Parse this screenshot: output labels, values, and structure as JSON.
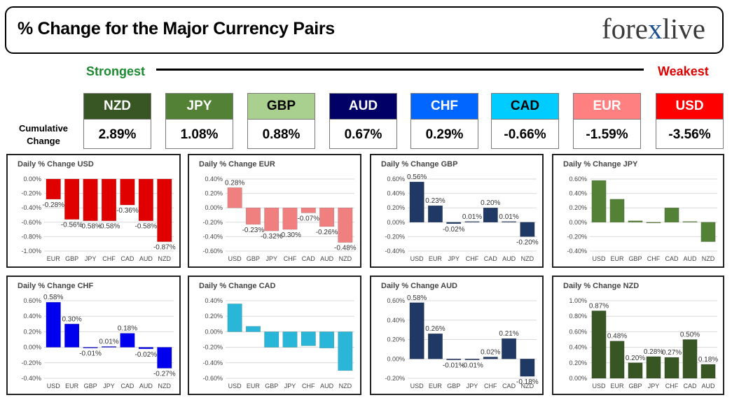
{
  "header": {
    "title": "% Change for the Major Currency Pairs",
    "logo": {
      "part1": "fore",
      "part2": "x",
      "part3": "live"
    }
  },
  "scale": {
    "strongest": "Strongest",
    "weakest": "Weakest"
  },
  "cumulative": {
    "label_line1": "Cumulative",
    "label_line2": "Change",
    "items": [
      {
        "currency": "NZD",
        "value": "2.89%",
        "color": "#375623",
        "text": "#ffffff"
      },
      {
        "currency": "JPY",
        "value": "1.08%",
        "color": "#538135",
        "text": "#ffffff"
      },
      {
        "currency": "GBP",
        "value": "0.88%",
        "color": "#a9d08e",
        "text": "#000000"
      },
      {
        "currency": "AUD",
        "value": "0.67%",
        "color": "#000066",
        "text": "#ffffff"
      },
      {
        "currency": "CHF",
        "value": "0.29%",
        "color": "#0066ff",
        "text": "#ffffff"
      },
      {
        "currency": "CAD",
        "value": "-0.66%",
        "color": "#00ccff",
        "text": "#000000"
      },
      {
        "currency": "EUR",
        "value": "-1.59%",
        "color": "#ff8080",
        "text": "#ffffff"
      },
      {
        "currency": "USD",
        "value": "-3.56%",
        "color": "#ff0000",
        "text": "#ffffff"
      }
    ]
  },
  "chart_data": [
    {
      "type": "bar",
      "title": "Daily % Change USD",
      "color": "#e00000",
      "categories": [
        "EUR",
        "GBP",
        "JPY",
        "CHF",
        "CAD",
        "AUD",
        "NZD"
      ],
      "values": [
        -0.28,
        -0.56,
        -0.58,
        -0.58,
        -0.36,
        -0.58,
        -0.87
      ],
      "labels": [
        "-0.28%",
        "-0.56%",
        "-0.58%",
        "-0.58%",
        "-0.36%",
        "-0.58%",
        "-0.87%"
      ],
      "yticks": [
        0,
        -0.2,
        -0.4,
        -0.6,
        -0.8,
        -1.0
      ],
      "yticklabels": [
        "0.00%",
        "-0.20%",
        "-0.40%",
        "-0.60%",
        "-0.80%",
        "-1.00%"
      ],
      "ylim": [
        -1.0,
        0.0
      ]
    },
    {
      "type": "bar",
      "title": "Daily % Change EUR",
      "color": "#f08080",
      "categories": [
        "USD",
        "GBP",
        "JPY",
        "CHF",
        "CAD",
        "AUD",
        "NZD"
      ],
      "values": [
        0.28,
        -0.23,
        -0.32,
        -0.3,
        -0.07,
        -0.26,
        -0.48
      ],
      "labels": [
        "0.28%",
        "-0.23%",
        "-0.32%",
        "-0.30%",
        "-0.07%",
        "-0.26%",
        "-0.48%"
      ],
      "yticks": [
        0.4,
        0.2,
        0,
        -0.2,
        -0.4,
        -0.6
      ],
      "yticklabels": [
        "0.40%",
        "0.20%",
        "0.00%",
        "-0.20%",
        "-0.40%",
        "-0.60%"
      ],
      "ylim": [
        -0.6,
        0.4
      ]
    },
    {
      "type": "bar",
      "title": "Daily % Change GBP",
      "color": "#1f3864",
      "categories": [
        "USD",
        "EUR",
        "JPY",
        "CHF",
        "CAD",
        "AUD",
        "NZD"
      ],
      "values": [
        0.56,
        0.23,
        -0.02,
        0.01,
        0.2,
        0.01,
        -0.2
      ],
      "labels": [
        "0.56%",
        "0.23%",
        "-0.02%",
        "0.01%",
        "0.20%",
        "0.01%",
        "-0.20%"
      ],
      "yticks": [
        0.6,
        0.4,
        0.2,
        0,
        -0.2,
        -0.4
      ],
      "yticklabels": [
        "0.60%",
        "0.40%",
        "0.20%",
        "0.00%",
        "-0.20%",
        "-0.40%"
      ],
      "ylim": [
        -0.4,
        0.6
      ]
    },
    {
      "type": "bar",
      "title": "Daily % Change JPY",
      "color": "#538135",
      "categories": [
        "USD",
        "EUR",
        "GBP",
        "CHF",
        "CAD",
        "AUD",
        "NZD"
      ],
      "values": [
        0.58,
        0.32,
        0.02,
        -0.01,
        0.2,
        0.01,
        -0.27
      ],
      "labels": [
        "",
        "",
        "",
        "",
        "",
        "",
        ""
      ],
      "yticks": [
        0.6,
        0.4,
        0.2,
        0,
        -0.2,
        -0.4
      ],
      "yticklabels": [
        "0.60%",
        "0.40%",
        "0.20%",
        "0.00%",
        "-0.20%",
        "-0.40%"
      ],
      "ylim": [
        -0.4,
        0.6
      ]
    },
    {
      "type": "bar",
      "title": "Daily % Change CHF",
      "color": "#0000ee",
      "categories": [
        "USD",
        "EUR",
        "GBP",
        "JPY",
        "CAD",
        "AUD",
        "NZD"
      ],
      "values": [
        0.58,
        0.3,
        -0.01,
        0.01,
        0.18,
        -0.02,
        -0.27
      ],
      "labels": [
        "0.58%",
        "0.30%",
        "-0.01%",
        "0.01%",
        "0.18%",
        "-0.02%",
        "-0.27%"
      ],
      "yticks": [
        0.6,
        0.4,
        0.2,
        0,
        -0.2,
        -0.4
      ],
      "yticklabels": [
        "0.60%",
        "0.40%",
        "0.20%",
        "0.00%",
        "-0.20%",
        "-0.40%"
      ],
      "ylim": [
        -0.4,
        0.6
      ]
    },
    {
      "type": "bar",
      "title": "Daily % Change CAD",
      "color": "#29b6d8",
      "categories": [
        "USD",
        "EUR",
        "GBP",
        "JPY",
        "CHF",
        "AUD",
        "NZD"
      ],
      "values": [
        0.36,
        0.07,
        -0.2,
        -0.2,
        -0.18,
        -0.21,
        -0.5
      ],
      "labels": [
        "",
        "",
        "",
        "",
        "",
        "",
        ""
      ],
      "yticks": [
        0.4,
        0.2,
        0,
        -0.2,
        -0.4,
        -0.6
      ],
      "yticklabels": [
        "0.40%",
        "0.20%",
        "0.00%",
        "-0.20%",
        "-0.40%",
        "-0.60%"
      ],
      "ylim": [
        -0.6,
        0.4
      ]
    },
    {
      "type": "bar",
      "title": "Daily % Change AUD",
      "color": "#1f3864",
      "categories": [
        "USD",
        "EUR",
        "GBP",
        "JPY",
        "CHF",
        "CAD",
        "NZD"
      ],
      "values": [
        0.58,
        0.26,
        -0.01,
        -0.01,
        0.02,
        0.21,
        -0.18
      ],
      "labels": [
        "0.58%",
        "0.26%",
        "-0.01%",
        "-0.01%",
        "0.02%",
        "0.21%",
        "-0.18%"
      ],
      "yticks": [
        0.6,
        0.4,
        0.2,
        0,
        -0.2
      ],
      "yticklabels": [
        "0.60%",
        "0.40%",
        "0.20%",
        "0.00%",
        "-0.20%"
      ],
      "ylim": [
        -0.2,
        0.6
      ]
    },
    {
      "type": "bar",
      "title": "Daily % Change NZD",
      "color": "#375623",
      "categories": [
        "USD",
        "EUR",
        "GBP",
        "JPY",
        "CHF",
        "CAD",
        "AUD"
      ],
      "values": [
        0.87,
        0.48,
        0.2,
        0.28,
        0.27,
        0.5,
        0.18
      ],
      "labels": [
        "0.87%",
        "0.48%",
        "0.20%",
        "0.28%",
        "0.27%",
        "0.50%",
        "0.18%"
      ],
      "yticks": [
        1.0,
        0.8,
        0.6,
        0.4,
        0.2,
        0
      ],
      "yticklabels": [
        "1.00%",
        "0.80%",
        "0.60%",
        "0.40%",
        "0.20%",
        "0.00%"
      ],
      "ylim": [
        0.0,
        1.0
      ]
    }
  ]
}
